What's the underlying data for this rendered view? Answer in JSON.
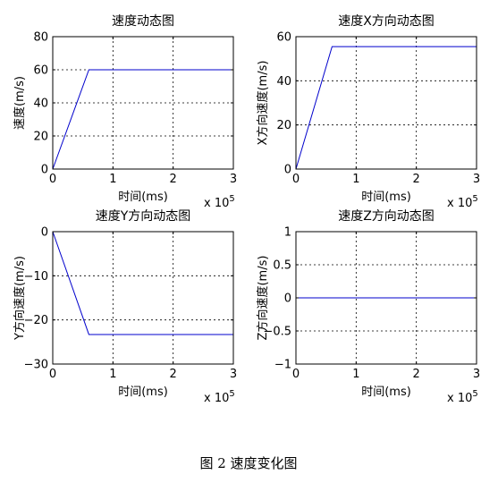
{
  "figure_caption": "图 2  速度变化图",
  "x_exponent_base": "x 10",
  "x_exponent_power": "5",
  "colors": {
    "line": "#0000cc",
    "axis": "#000000",
    "grid": "#000000",
    "background": "#ffffff"
  },
  "chart_data": [
    {
      "type": "line",
      "title": "速度动态图",
      "xlabel": "时间(ms)",
      "ylabel": "速度(m/s)",
      "xlim": [
        0,
        3
      ],
      "ylim": [
        0,
        80
      ],
      "xticks": [
        0,
        1,
        2,
        3
      ],
      "yticks": [
        0,
        20,
        40,
        60,
        80
      ],
      "grid": true,
      "series": [
        {
          "x": [
            0,
            0.6,
            3
          ],
          "y": [
            0,
            60,
            60
          ]
        }
      ]
    },
    {
      "type": "line",
      "title": "速度X方向动态图",
      "xlabel": "时间(ms)",
      "ylabel": "X方向速度(m/s)",
      "xlim": [
        0,
        3
      ],
      "ylim": [
        0,
        60
      ],
      "xticks": [
        0,
        1,
        2,
        3
      ],
      "yticks": [
        0,
        20,
        40,
        60
      ],
      "grid": true,
      "series": [
        {
          "x": [
            0,
            0.6,
            3
          ],
          "y": [
            0,
            55.5,
            55.5
          ]
        }
      ]
    },
    {
      "type": "line",
      "title": "速度Y方向动态图",
      "xlabel": "时间(ms)",
      "ylabel": "Y方向速度(m/s)",
      "xlim": [
        0,
        3
      ],
      "ylim": [
        -30,
        0
      ],
      "xticks": [
        0,
        1,
        2,
        3
      ],
      "yticks": [
        -30,
        -20,
        -10,
        0
      ],
      "grid": true,
      "series": [
        {
          "x": [
            0,
            0.6,
            3
          ],
          "y": [
            0,
            -23.3,
            -23.3
          ]
        }
      ]
    },
    {
      "type": "line",
      "title": "速度Z方向动态图",
      "xlabel": "时间(ms)",
      "ylabel": "Z方向速度(m/s)",
      "xlim": [
        0,
        3
      ],
      "ylim": [
        -1,
        1
      ],
      "xticks": [
        0,
        1,
        2,
        3
      ],
      "yticks": [
        -1,
        -0.5,
        0,
        0.5,
        1
      ],
      "grid": true,
      "series": [
        {
          "x": [
            0,
            3
          ],
          "y": [
            0,
            0
          ]
        }
      ]
    }
  ]
}
